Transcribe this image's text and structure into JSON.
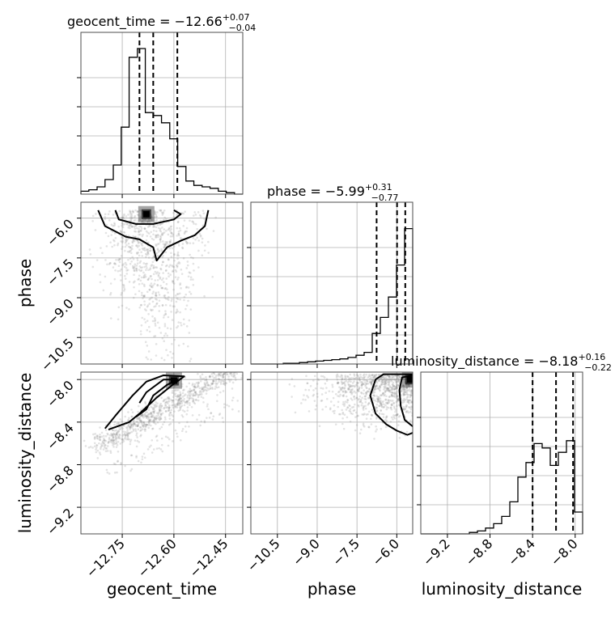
{
  "chart_data": {
    "type": "corner",
    "parameters": [
      {
        "name": "geocent_time",
        "label": "geocent_time",
        "title": "geocent_time = −12.66",
        "title_sup": "+0.07",
        "title_sub": "−0.04",
        "range": [
          -12.87,
          -12.4
        ],
        "ticks": [
          -12.75,
          -12.6,
          -12.45
        ],
        "tick_labels": [
          "−12.75",
          "−12.60",
          "−12.45"
        ],
        "quantiles": [
          -12.7,
          -12.66,
          -12.59
        ],
        "hist_x": [
          -12.87,
          -12.847,
          -12.823,
          -12.8,
          -12.776,
          -12.753,
          -12.73,
          -12.706,
          -12.683,
          -12.659,
          -12.636,
          -12.612,
          -12.589,
          -12.565,
          -12.542,
          -12.518,
          -12.495,
          -12.471,
          -12.448,
          -12.424,
          -12.4
        ],
        "hist_y": [
          0.02,
          0.03,
          0.05,
          0.1,
          0.2,
          0.46,
          0.94,
          1.0,
          0.56,
          0.54,
          0.49,
          0.38,
          0.19,
          0.09,
          0.06,
          0.05,
          0.04,
          0.02,
          0.01,
          0.0
        ]
      },
      {
        "name": "phase",
        "label": "phase",
        "title": "phase = −5.99",
        "title_sup": "+0.31",
        "title_sub": "−0.77",
        "range": [
          -11.5,
          -5.4
        ],
        "ticks": [
          -10.5,
          -9.0,
          -7.5,
          -6.0
        ],
        "tick_labels": [
          "−10.5",
          "−9.0",
          "−7.5",
          "−6.0"
        ],
        "quantiles": [
          -6.76,
          -5.99,
          -5.68
        ],
        "hist_x": [
          -11.5,
          -11.195,
          -10.89,
          -10.585,
          -10.28,
          -9.975,
          -9.67,
          -9.365,
          -9.06,
          -8.755,
          -8.45,
          -8.145,
          -7.84,
          -7.535,
          -7.23,
          -6.925,
          -6.62,
          -6.315,
          -6.01,
          -5.705,
          -5.4
        ],
        "hist_y": [
          0.0,
          0.0,
          0.0,
          0.0,
          0.005,
          0.005,
          0.01,
          0.015,
          0.02,
          0.025,
          0.03,
          0.035,
          0.045,
          0.06,
          0.08,
          0.21,
          0.32,
          0.46,
          0.68,
          0.93
        ]
      },
      {
        "name": "luminosity_distance",
        "label": "luminosity_distance",
        "title": "luminosity_distance = −8.18",
        "title_sup": "+0.16",
        "title_sub": "−0.22",
        "range": [
          -9.45,
          -7.93
        ],
        "ticks": [
          -9.2,
          -8.8,
          -8.4,
          -8.0
        ],
        "tick_labels": [
          "−9.2",
          "−8.8",
          "−8.4",
          "−8.0"
        ],
        "quantiles": [
          -8.4,
          -8.18,
          -8.02
        ],
        "hist_x": [
          -9.45,
          -9.374,
          -9.298,
          -9.222,
          -9.146,
          -9.07,
          -8.994,
          -8.918,
          -8.842,
          -8.766,
          -8.69,
          -8.614,
          -8.538,
          -8.462,
          -8.386,
          -8.31,
          -8.234,
          -8.158,
          -8.082,
          -8.006,
          -7.93
        ],
        "hist_y": [
          0.0,
          0.0,
          0.0,
          0.0,
          0.0,
          0.0,
          0.01,
          0.02,
          0.04,
          0.07,
          0.12,
          0.22,
          0.39,
          0.49,
          0.62,
          0.59,
          0.47,
          0.56,
          0.64,
          0.15
        ]
      }
    ],
    "pairs": [
      {
        "x": "geocent_time",
        "y": "phase",
        "scatter_trend": "dense near phase −6, spreading toward −11 below geocent_time −12.60",
        "contours": [
          [
            [
              -12.77,
              -5.7
            ],
            [
              -12.76,
              -6.05
            ],
            [
              -12.71,
              -6.22
            ],
            [
              -12.66,
              -6.22
            ],
            [
              -12.6,
              -6.05
            ],
            [
              -12.58,
              -5.85
            ],
            [
              -12.6,
              -5.7
            ]
          ],
          [
            [
              -12.82,
              -5.7
            ],
            [
              -12.8,
              -6.3
            ],
            [
              -12.74,
              -6.7
            ],
            [
              -12.7,
              -6.8
            ],
            [
              -12.66,
              -7.1
            ],
            [
              -12.65,
              -7.6
            ],
            [
              -12.62,
              -7.1
            ],
            [
              -12.58,
              -6.85
            ],
            [
              -12.54,
              -6.65
            ],
            [
              -12.51,
              -6.3
            ],
            [
              -12.5,
              -5.7
            ]
          ]
        ],
        "peak": [
          -12.68,
          -5.85
        ]
      },
      {
        "x": "geocent_time",
        "y": "luminosity_distance",
        "scatter_trend": "positively correlated band from (−12.80, −8.6) up to (−12.45, −7.95)",
        "contours": [
          [
            [
              -12.7,
              -8.22
            ],
            [
              -12.68,
              -8.12
            ],
            [
              -12.63,
              -8.0
            ],
            [
              -12.59,
              -8.0
            ],
            [
              -12.62,
              -8.05
            ],
            [
              -12.66,
              -8.15
            ],
            [
              -12.68,
              -8.28
            ],
            [
              -12.71,
              -8.35
            ]
          ],
          [
            [
              -12.8,
              -8.46
            ],
            [
              -12.77,
              -8.34
            ],
            [
              -12.72,
              -8.15
            ],
            [
              -12.68,
              -8.02
            ],
            [
              -12.63,
              -7.96
            ],
            [
              -12.57,
              -7.97
            ],
            [
              -12.6,
              -8.04
            ],
            [
              -12.65,
              -8.17
            ],
            [
              -12.7,
              -8.32
            ],
            [
              -12.73,
              -8.4
            ],
            [
              -12.79,
              -8.47
            ]
          ]
        ],
        "peak": [
          -12.6,
          -8.01
        ]
      },
      {
        "x": "phase",
        "y": "luminosity_distance",
        "scatter_trend": "densest at phase −6 and luminosity_distance −8.0, fading toward lower phase",
        "contours": [
          [
            [
              -5.4,
              -8.44
            ],
            [
              -5.7,
              -8.38
            ],
            [
              -5.85,
              -8.25
            ],
            [
              -5.9,
              -8.1
            ],
            [
              -5.8,
              -7.98
            ],
            [
              -5.4,
              -7.96
            ]
          ],
          [
            [
              -5.4,
              -8.5
            ],
            [
              -5.6,
              -8.52
            ],
            [
              -6.0,
              -8.48
            ],
            [
              -6.4,
              -8.42
            ],
            [
              -6.8,
              -8.32
            ],
            [
              -7.0,
              -8.15
            ],
            [
              -6.8,
              -8.0
            ],
            [
              -6.5,
              -7.95
            ],
            [
              -5.4,
              -7.95
            ]
          ]
        ],
        "peak": [
          -5.5,
          -8.0
        ]
      }
    ]
  }
}
